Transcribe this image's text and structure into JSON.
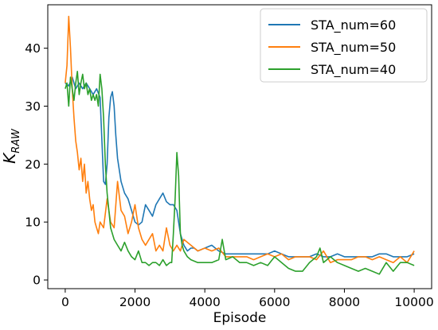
{
  "chart_data": {
    "type": "line",
    "title": "",
    "xlabel": "Episode",
    "ylabel_main": "K",
    "ylabel_sub": "RAW",
    "xlim": [
      -500,
      10500
    ],
    "ylim": [
      -1.5,
      47.5
    ],
    "xticks": [
      0,
      2000,
      4000,
      6000,
      8000,
      10000
    ],
    "yticks": [
      0,
      10,
      20,
      30,
      40
    ],
    "grid": false,
    "legend_position": "top-right",
    "series": [
      {
        "name": "STA_num=60",
        "color": "#1f77b4",
        "x": [
          0,
          100,
          200,
          300,
          400,
          500,
          600,
          700,
          800,
          900,
          1000,
          1100,
          1150,
          1200,
          1250,
          1300,
          1350,
          1400,
          1450,
          1500,
          1600,
          1700,
          1800,
          1900,
          2000,
          2100,
          2200,
          2300,
          2400,
          2500,
          2600,
          2700,
          2800,
          2900,
          3000,
          3100,
          3200,
          3300,
          3400,
          3500,
          3600,
          3700,
          3800,
          4000,
          4200,
          4400,
          4600,
          4800,
          5000,
          5200,
          5400,
          5600,
          5800,
          6000,
          6200,
          6400,
          6600,
          6800,
          7000,
          7200,
          7400,
          7600,
          7800,
          8000,
          8200,
          8400,
          8600,
          8800,
          9000,
          9200,
          9400,
          9600,
          9800,
          10000
        ],
        "y": [
          34,
          33.5,
          35,
          33,
          34,
          33,
          34,
          33,
          32,
          33,
          31.5,
          17,
          16.5,
          20,
          28,
          31.5,
          32.5,
          30,
          25,
          21,
          17,
          15,
          14,
          12,
          10,
          9.5,
          10,
          13,
          12,
          11,
          13,
          14,
          15,
          13.5,
          13,
          13,
          12,
          8,
          6,
          5,
          5.5,
          5.5,
          5,
          5.5,
          6,
          5,
          4.5,
          4.5,
          4.5,
          4.5,
          4.5,
          4.5,
          4.5,
          5,
          4.5,
          4,
          4,
          4,
          4,
          4.5,
          4,
          4,
          4.5,
          4,
          4,
          4,
          4,
          4,
          4.5,
          4.5,
          4,
          4,
          4,
          4.5
        ]
      },
      {
        "name": "STA_num=50",
        "color": "#ff7f0e",
        "x": [
          0,
          50,
          100,
          150,
          200,
          250,
          300,
          350,
          400,
          450,
          500,
          550,
          600,
          650,
          700,
          750,
          800,
          850,
          900,
          950,
          1000,
          1100,
          1200,
          1300,
          1400,
          1500,
          1600,
          1700,
          1800,
          1900,
          2000,
          2100,
          2200,
          2300,
          2400,
          2500,
          2600,
          2700,
          2800,
          2900,
          3000,
          3100,
          3200,
          3300,
          3400,
          3600,
          3800,
          4000,
          4200,
          4400,
          4600,
          4800,
          5000,
          5200,
          5400,
          5600,
          5800,
          6000,
          6200,
          6400,
          6600,
          6800,
          7000,
          7200,
          7400,
          7600,
          7800,
          8000,
          8200,
          8400,
          8600,
          8800,
          9000,
          9200,
          9400,
          9600,
          9800,
          10000
        ],
        "y": [
          34,
          37,
          45.5,
          40,
          33,
          28,
          24,
          22,
          19,
          21,
          17,
          20,
          15,
          17,
          14,
          12,
          13,
          10,
          9,
          8,
          10,
          9,
          14,
          10,
          9,
          17,
          12,
          11,
          8,
          10,
          13,
          9,
          7,
          6,
          7,
          8,
          5,
          6,
          5,
          9,
          6,
          5,
          6,
          5,
          7,
          6,
          5,
          5.5,
          5,
          5.5,
          4,
          4,
          4,
          4,
          3.5,
          4,
          4.5,
          4,
          4.5,
          3.5,
          4,
          4,
          4,
          3.5,
          5,
          3,
          3.5,
          3.5,
          3.5,
          4,
          4,
          3.5,
          4,
          3.5,
          3,
          4,
          3,
          5
        ]
      },
      {
        "name": "STA_num=40",
        "color": "#2ca02c",
        "x": [
          0,
          50,
          100,
          150,
          200,
          250,
          300,
          350,
          400,
          450,
          500,
          550,
          600,
          650,
          700,
          750,
          800,
          850,
          900,
          950,
          1000,
          1050,
          1100,
          1150,
          1200,
          1250,
          1300,
          1400,
          1500,
          1600,
          1700,
          1800,
          1900,
          2000,
          2100,
          2200,
          2300,
          2400,
          2500,
          2600,
          2700,
          2800,
          2900,
          3000,
          3050,
          3100,
          3150,
          3200,
          3250,
          3300,
          3350,
          3400,
          3500,
          3600,
          3800,
          4000,
          4200,
          4400,
          4500,
          4600,
          4800,
          5000,
          5200,
          5400,
          5600,
          5800,
          6000,
          6200,
          6400,
          6600,
          6800,
          7000,
          7200,
          7300,
          7400,
          7600,
          7800,
          8000,
          8200,
          8400,
          8600,
          8800,
          9000,
          9200,
          9400,
          9600,
          9800,
          10000
        ],
        "y": [
          33,
          34,
          30,
          35,
          33,
          31,
          34,
          36,
          32,
          34,
          35.5,
          33,
          34,
          32,
          33,
          31,
          32,
          31,
          32,
          30,
          35.5,
          33,
          28,
          20,
          15,
          12,
          9,
          7,
          6,
          5,
          6.5,
          5,
          4,
          3.5,
          5,
          3,
          3,
          2.5,
          3,
          3,
          2.5,
          3.5,
          2.5,
          3,
          3,
          8,
          14,
          22,
          18,
          8,
          6,
          5,
          4,
          3.5,
          3,
          3,
          3,
          3.5,
          7,
          3.5,
          4,
          3,
          3,
          2.5,
          3,
          2.5,
          4,
          3,
          2,
          1.5,
          1.5,
          3,
          4,
          5.5,
          3,
          4,
          3,
          2.5,
          2,
          1.5,
          2,
          1.5,
          1,
          3,
          1.5,
          3,
          3,
          2.5
        ]
      }
    ]
  }
}
